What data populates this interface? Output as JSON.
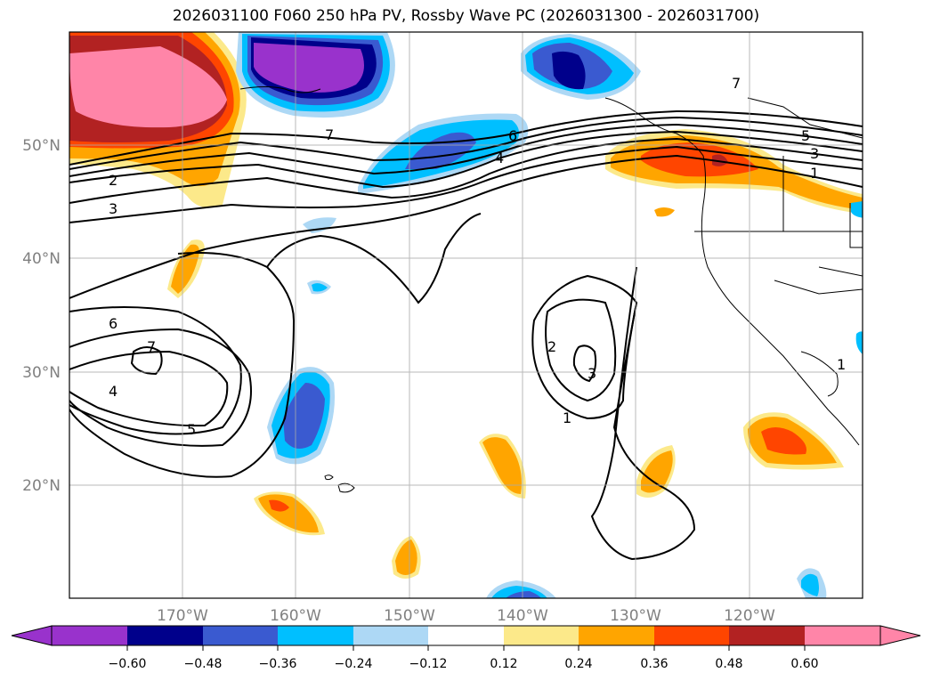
{
  "title": "2026031100 F060 250 hPa PV, Rossby Wave PC (2026031300 - 2026031700)",
  "map": {
    "lon_range": [
      -180,
      -110
    ],
    "lat_range": [
      10,
      60
    ],
    "lat_ticks": [
      {
        "value": 20,
        "label": "20°N"
      },
      {
        "value": 30,
        "label": "30°N"
      },
      {
        "value": 40,
        "label": "40°N"
      },
      {
        "value": 50,
        "label": "50°N"
      }
    ],
    "lon_ticks": [
      {
        "value": -170,
        "label": "170°W"
      },
      {
        "value": -160,
        "label": "160°W"
      },
      {
        "value": -150,
        "label": "150°W"
      },
      {
        "value": -140,
        "label": "140°W"
      },
      {
        "value": -130,
        "label": "130°W"
      },
      {
        "value": -120,
        "label": "120°W"
      }
    ],
    "contour_labels": [
      "7",
      "6",
      "5",
      "4",
      "3",
      "2",
      "1"
    ]
  },
  "colorbar": {
    "colors": [
      "#9932cc",
      "#00008b",
      "#3a5ad0",
      "#00bfff",
      "#add8f5",
      "#ffffff",
      "#fce98a",
      "#ffa500",
      "#ff4500",
      "#b22222",
      "#ff85a8"
    ],
    "tick_labels": [
      "−0.60",
      "−0.48",
      "−0.36",
      "−0.24",
      "−0.12",
      "0.12",
      "0.24",
      "0.36",
      "0.48",
      "0.60"
    ]
  }
}
